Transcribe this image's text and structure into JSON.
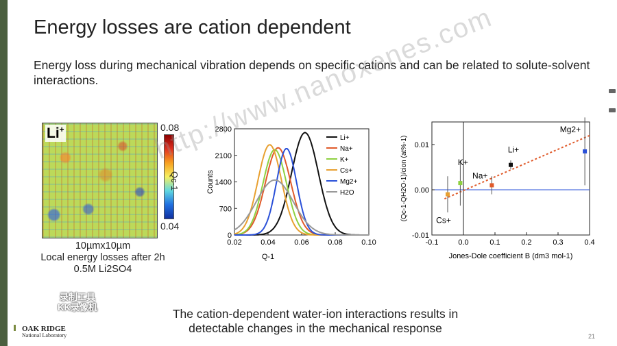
{
  "slide": {
    "title": "Energy losses are cation dependent",
    "subtitle": "Energy loss during mechanical vibration depends on specific cations and can be related to solute-solvent interactions.",
    "bottom_message_line1": "The cation-dependent water-ion interactions results in",
    "bottom_message_line2": "detectable changes in the mechanical response",
    "page_number": "21"
  },
  "map": {
    "label": "Li+",
    "colorbar_max": "0.08",
    "colorbar_min": "0.04",
    "colorbar_label": "Qc-1",
    "caption_line1": "10µmx10µm",
    "caption_line2": "Local energy losses after 2h",
    "caption_line3": "0.5M Li2SO4"
  },
  "logo": {
    "line1": "Oak Ridge",
    "line2": "National Laboratory"
  },
  "watermark": {
    "text": "http://www.nanoxenes.com"
  },
  "recorder_badge": {
    "line1": "录制工具",
    "line2": "KK录像机"
  },
  "chart_data": [
    {
      "type": "line",
      "xlabel": "Q-1",
      "ylabel": "Counts",
      "xlim": [
        0.02,
        0.1
      ],
      "ylim": [
        0,
        2800
      ],
      "xticks": [
        "0.02",
        "0.04",
        "0.06",
        "0.08",
        "0.10"
      ],
      "yticks": [
        "0",
        "700",
        "1400",
        "2100",
        "2800"
      ],
      "legend_position": "top-right",
      "series": [
        {
          "name": "Li+",
          "color": "#111111",
          "peak_x": 0.062,
          "peak_y": 2700,
          "width": 0.008
        },
        {
          "name": "Na+",
          "color": "#e05a2a",
          "peak_x": 0.046,
          "peak_y": 2300,
          "width": 0.0075
        },
        {
          "name": "K+",
          "color": "#8ed040",
          "peak_x": 0.044,
          "peak_y": 2250,
          "width": 0.007
        },
        {
          "name": "Cs+",
          "color": "#e8a030",
          "peak_x": 0.041,
          "peak_y": 2380,
          "width": 0.007
        },
        {
          "name": "Mg2+",
          "color": "#2a50d8",
          "peak_x": 0.051,
          "peak_y": 2280,
          "width": 0.006
        },
        {
          "name": "H2O",
          "color": "#999999",
          "peak_x": 0.044,
          "peak_y": 1450,
          "width": 0.011
        }
      ]
    },
    {
      "type": "scatter",
      "xlabel": "Jones-Dole coefficient B (dm3 mol-1)",
      "ylabel": "(Qc-1-QH2O-1)/cion (at%-1)",
      "xlim": [
        -0.1,
        0.4
      ],
      "ylim": [
        -0.01,
        0.015
      ],
      "xticks": [
        "-0.1",
        "0.0",
        "0.1",
        "0.2",
        "0.3",
        "0.4"
      ],
      "yticks": [
        "-0.01",
        "0.00",
        "0.01"
      ],
      "trendline": {
        "x1": -0.06,
        "y1": -0.002,
        "x2": 0.4,
        "y2": 0.012,
        "color": "#e05a2a"
      },
      "points": [
        {
          "label": "Cs+",
          "x": -0.05,
          "y": -0.001,
          "err": 0.004,
          "color": "#e8a030"
        },
        {
          "label": "K+",
          "x": -0.01,
          "y": 0.0015,
          "err": 0.005,
          "color": "#8ed040"
        },
        {
          "label": "Na+",
          "x": 0.09,
          "y": 0.001,
          "err": 0.002,
          "color": "#e05a2a"
        },
        {
          "label": "Li+",
          "x": 0.15,
          "y": 0.0055,
          "err": 0.001,
          "color": "#111111"
        },
        {
          "label": "Mg2+",
          "x": 0.385,
          "y": 0.0085,
          "err": 0.0075,
          "color": "#2a50d8"
        }
      ]
    }
  ]
}
